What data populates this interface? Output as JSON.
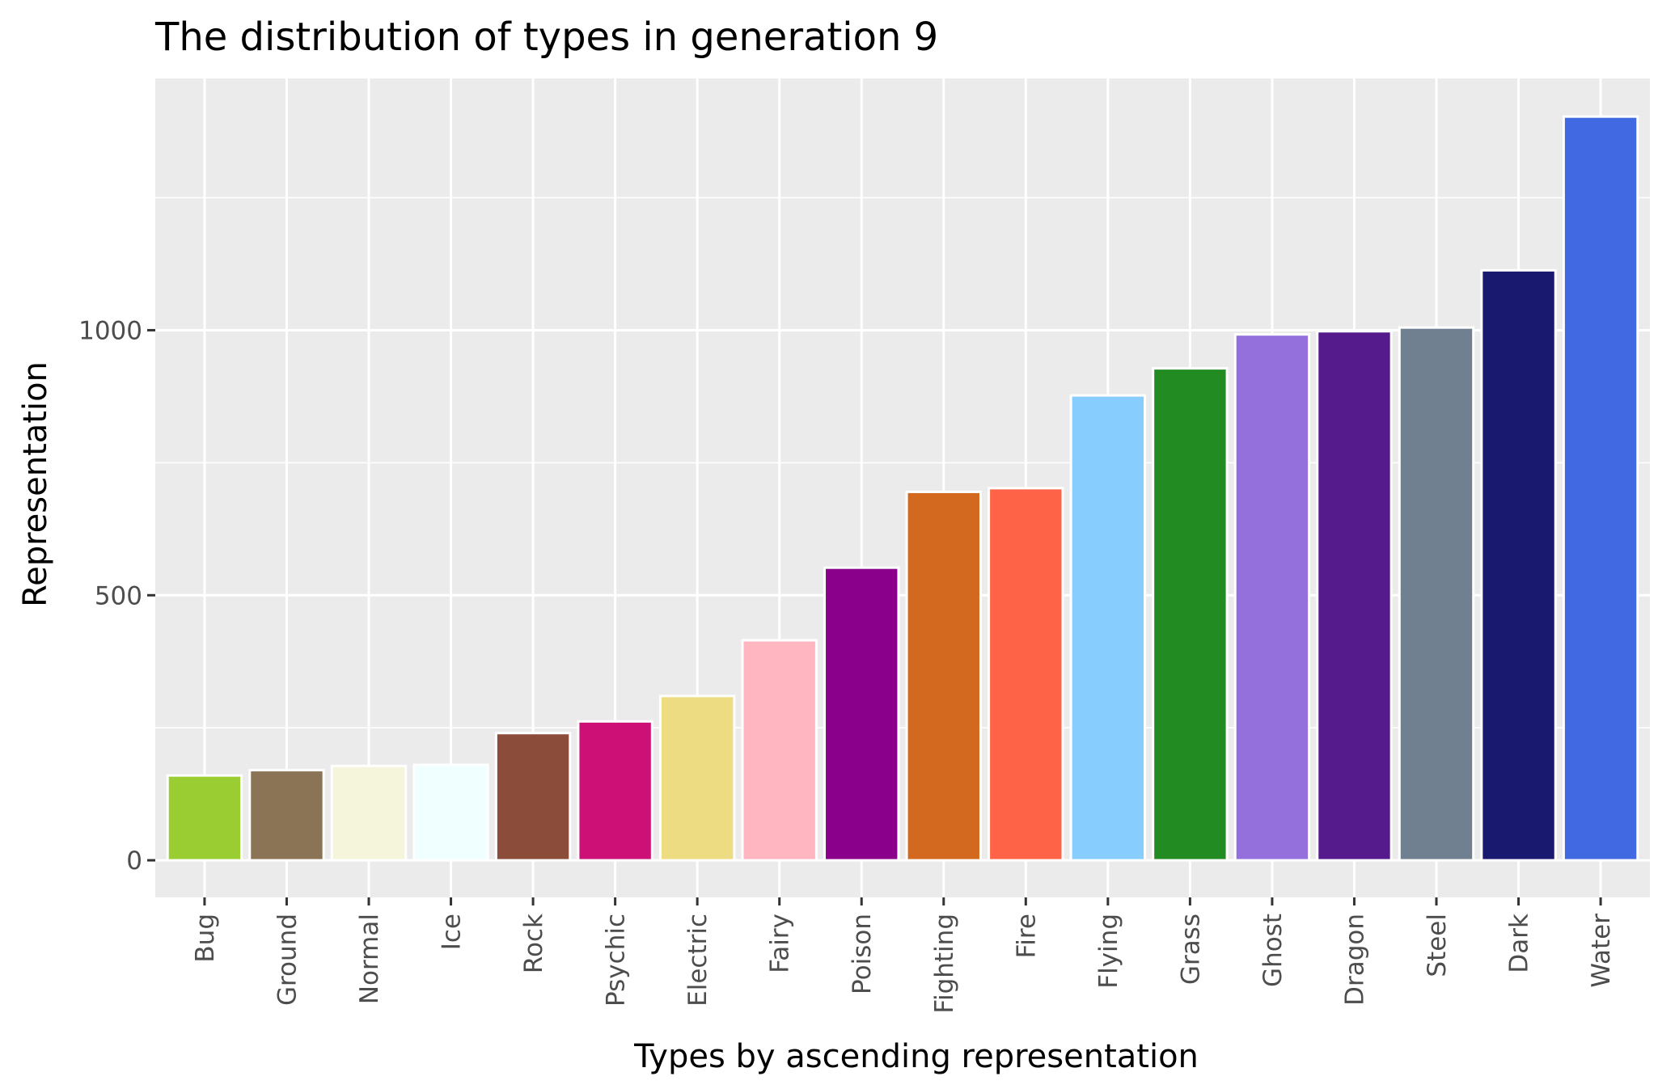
{
  "chart_data": {
    "type": "bar",
    "title": "The distribution of types in generation 9",
    "xlabel": "Types by ascending representation",
    "ylabel": "Representation",
    "categories": [
      "Bug",
      "Ground",
      "Normal",
      "Ice",
      "Rock",
      "Psychic",
      "Electric",
      "Fairy",
      "Poison",
      "Fighting",
      "Fire",
      "Flying",
      "Grass",
      "Ghost",
      "Dragon",
      "Steel",
      "Dark",
      "Water"
    ],
    "values": [
      160,
      170,
      178,
      180,
      240,
      262,
      310,
      415,
      552,
      695,
      702,
      877,
      928,
      992,
      998,
      1005,
      1113,
      1403
    ],
    "colors": [
      "#9ACD32",
      "#8B7355",
      "#F5F5DC",
      "#F0FFFF",
      "#8B4C39",
      "#CD1076",
      "#EEDC82",
      "#FFB6C1",
      "#8B008B",
      "#D2691E",
      "#FF6347",
      "#87CEFF",
      "#228B22",
      "#9370DB",
      "#551A8B",
      "#708090",
      "#191970",
      "#4169E1"
    ],
    "ylim": [
      -70,
      1475
    ],
    "yticks": [
      0,
      500,
      1000
    ],
    "grid": true,
    "legend": "none"
  }
}
